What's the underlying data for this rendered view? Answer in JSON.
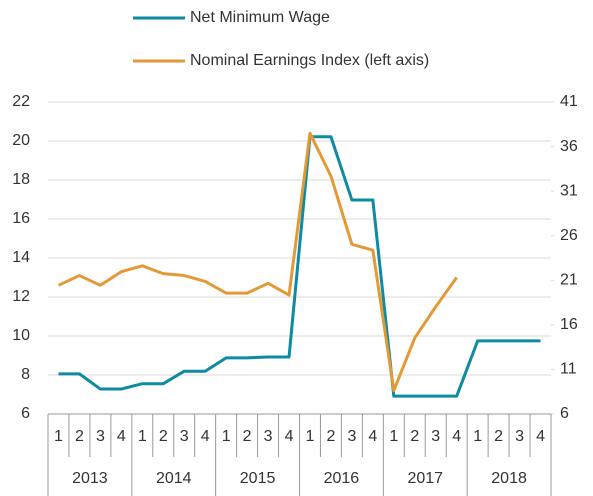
{
  "chart_data": {
    "type": "line",
    "categories": [
      "1",
      "2",
      "3",
      "4",
      "1",
      "2",
      "3",
      "4",
      "1",
      "2",
      "3",
      "4",
      "1",
      "2",
      "3",
      "4",
      "1",
      "2",
      "3",
      "4",
      "1",
      "2",
      "3",
      "4"
    ],
    "category_groups": [
      "2013",
      "2014",
      "2015",
      "2016",
      "2017",
      "2018"
    ],
    "series": [
      {
        "name": "Net Minimum Wage",
        "color": "#0e8aa3",
        "axis": "y2",
        "values": [
          10.5,
          10.5,
          8.8,
          8.8,
          9.4,
          9.4,
          10.8,
          10.8,
          12.3,
          12.3,
          12.4,
          12.4,
          37.1,
          37.1,
          30.0,
          30.0,
          8.0,
          8.0,
          8.0,
          8.0,
          14.2,
          14.2,
          14.2,
          14.2
        ]
      },
      {
        "name": "Nominal Earnings Index (left axis)",
        "color": "#e39a36",
        "values": [
          12.6,
          13.1,
          12.6,
          13.3,
          13.6,
          13.2,
          13.1,
          12.8,
          12.2,
          12.2,
          12.7,
          12.1,
          20.4,
          18.2,
          14.7,
          14.4,
          7.2,
          9.9,
          11.5,
          13.0,
          null,
          null,
          null,
          null
        ]
      }
    ],
    "ylim": [
      6,
      22
    ],
    "yticks": [
      6,
      8,
      10,
      12,
      14,
      16,
      18,
      20,
      22
    ],
    "y2lim": [
      6,
      41
    ],
    "y2ticks": [
      6,
      11,
      16,
      21,
      26,
      31,
      36,
      41
    ],
    "grid": true,
    "legend": "top"
  }
}
